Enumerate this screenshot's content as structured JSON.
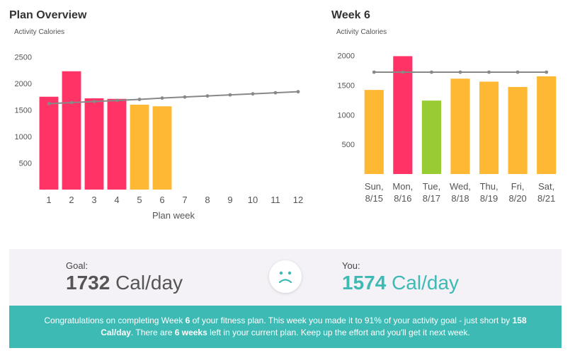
{
  "plan_overview": {
    "title": "Plan Overview",
    "ylabel": "Activity Calories"
  },
  "week_panel": {
    "title": "Week 6",
    "ylabel": "Activity Calories"
  },
  "summary": {
    "goal_label": "Goal:",
    "goal_number": "1732",
    "goal_unit": " Cal/day",
    "you_label": "You:",
    "you_number": "1574",
    "you_unit": " Cal/day",
    "face_icon": "sad-face-icon"
  },
  "message": {
    "part1": "Congratulations on completing Week ",
    "week": "6",
    "part2": " of your fitness plan. This week you made it to 91% of your activity goal - just short by ",
    "short_by": "158 Cal/day",
    "part3": ". There are ",
    "weeks_left": "6 weeks",
    "part4": " left in your current plan. Keep up the effort and you'll get it next week."
  },
  "colors": {
    "pink": "#ff3366",
    "orange": "#ffb833",
    "green": "#99cc33",
    "target_line": "#888888",
    "teal": "#3dbab4"
  },
  "chart_data": [
    {
      "type": "bar",
      "title": "Plan Overview",
      "xlabel": "Plan week",
      "ylabel": "Activity Calories",
      "ylim": [
        0,
        2600
      ],
      "yticks": [
        500,
        1000,
        1500,
        2000,
        2500
      ],
      "categories": [
        "1",
        "2",
        "3",
        "4",
        "5",
        "6",
        "7",
        "8",
        "9",
        "10",
        "11",
        "12"
      ],
      "values": [
        1750,
        2230,
        1720,
        1710,
        1600,
        1570,
        null,
        null,
        null,
        null,
        null,
        null
      ],
      "bar_colors": [
        "#ff3366",
        "#ff3366",
        "#ff3366",
        "#ff3366",
        "#ffb833",
        "#ffb833",
        null,
        null,
        null,
        null,
        null,
        null
      ],
      "target_line": {
        "values": [
          1620,
          1640,
          1660,
          1680,
          1700,
          1725,
          1745,
          1765,
          1785,
          1805,
          1825,
          1845
        ]
      },
      "grid": false,
      "legend": "none"
    },
    {
      "type": "bar",
      "title": "Week 6",
      "xlabel": "",
      "ylabel": "Activity Calories",
      "ylim": [
        0,
        2150
      ],
      "yticks": [
        500,
        1000,
        1500,
        2000
      ],
      "categories": [
        [
          "Sun,",
          "8/15"
        ],
        [
          "Mon,",
          "8/16"
        ],
        [
          "Tue,",
          "8/17"
        ],
        [
          "Wed,",
          "8/18"
        ],
        [
          "Thu,",
          "8/19"
        ],
        [
          "Fri,",
          "8/20"
        ],
        [
          "Sat,",
          "8/21"
        ]
      ],
      "values": [
        1420,
        1990,
        1240,
        1610,
        1560,
        1470,
        1650
      ],
      "bar_colors": [
        "#ffb833",
        "#ff3366",
        "#99cc33",
        "#ffb833",
        "#ffb833",
        "#ffb833",
        "#ffb833"
      ],
      "target_line": {
        "values": [
          1720,
          1720,
          1720,
          1720,
          1720,
          1720,
          1720
        ]
      },
      "grid": false,
      "legend": "none"
    }
  ]
}
